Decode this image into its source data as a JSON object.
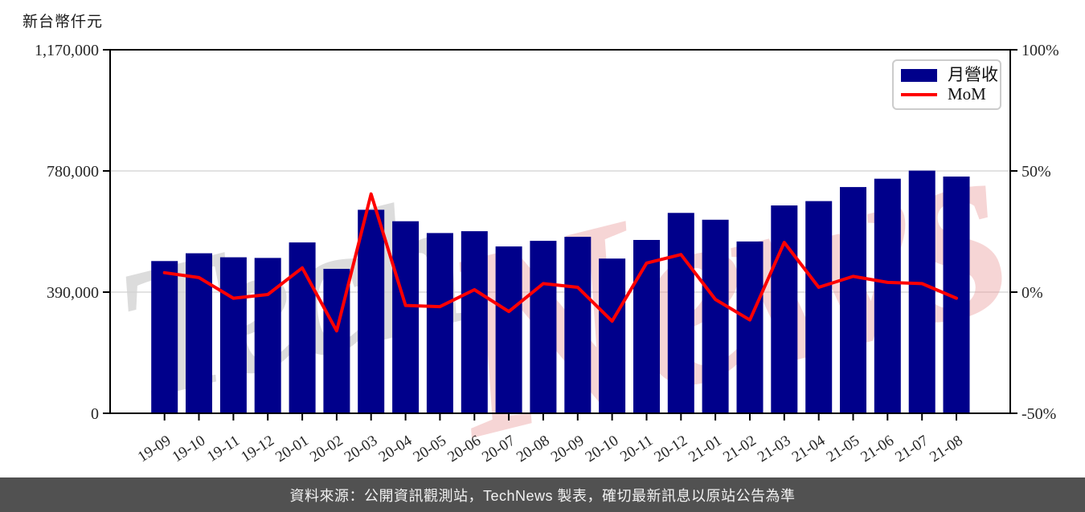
{
  "footer": {
    "text": "資料來源：公開資訊觀測站，TechNews 製表，確切最新訊息以原站公告為準"
  },
  "watermark": {
    "part1": "Tech",
    "part2": "News",
    "color1": "#d4d4d4",
    "color2": "#eda3a3"
  },
  "colors": {
    "bar": "#00008B",
    "line": "#fe0000",
    "grid": "#d8d8d8",
    "spine": "#000000",
    "tick_label": "#262626",
    "footer_bg": "#515151"
  },
  "chart_data": {
    "type": "bar",
    "combo": "bar+line, dual y-axis",
    "categories": [
      "19-09",
      "19-10",
      "19-11",
      "19-12",
      "20-01",
      "20-02",
      "20-03",
      "20-04",
      "20-05",
      "20-06",
      "20-07",
      "20-08",
      "20-09",
      "20-10",
      "20-11",
      "20-12",
      "21-01",
      "21-02",
      "21-03",
      "21-04",
      "21-05",
      "21-06",
      "21-07",
      "21-08"
    ],
    "series": [
      {
        "name": "月營收",
        "type": "bar",
        "axis": "left",
        "color": "#00008B",
        "values": [
          490000,
          515000,
          502000,
          500000,
          550000,
          465000,
          655000,
          618000,
          580000,
          586000,
          537000,
          555000,
          568000,
          498000,
          558000,
          645000,
          623000,
          553000,
          669000,
          683000,
          728000,
          755000,
          781000,
          762000
        ]
      },
      {
        "name": "MoM",
        "type": "line",
        "axis": "right",
        "color": "#fe0000",
        "values": [
          8,
          6,
          -2.5,
          -1,
          10,
          -16,
          40.5,
          -5.5,
          -6,
          1,
          -8,
          3.5,
          2,
          -12,
          12,
          15.5,
          -3,
          -11.5,
          20.5,
          2,
          6.5,
          4,
          3.5,
          -2.5
        ]
      }
    ],
    "left_axis": {
      "title": "新台幣仟元",
      "range": [
        0,
        1170000
      ],
      "tick_values": [
        0,
        390000,
        780000,
        1170000
      ],
      "tick_labels": [
        "0",
        "390,000",
        "780,000",
        "1,170,000"
      ]
    },
    "right_axis": {
      "range": [
        -50,
        100
      ],
      "tick_values": [
        -50,
        0,
        50,
        100
      ],
      "tick_labels": [
        "-50%",
        "0%",
        "50%",
        "100%"
      ]
    },
    "grid": {
      "horizontal_at_left_values": [
        390000,
        780000
      ],
      "color": "#d8d8d8"
    },
    "legend_position": "top-right",
    "x_tick_rotation_deg": 33
  }
}
